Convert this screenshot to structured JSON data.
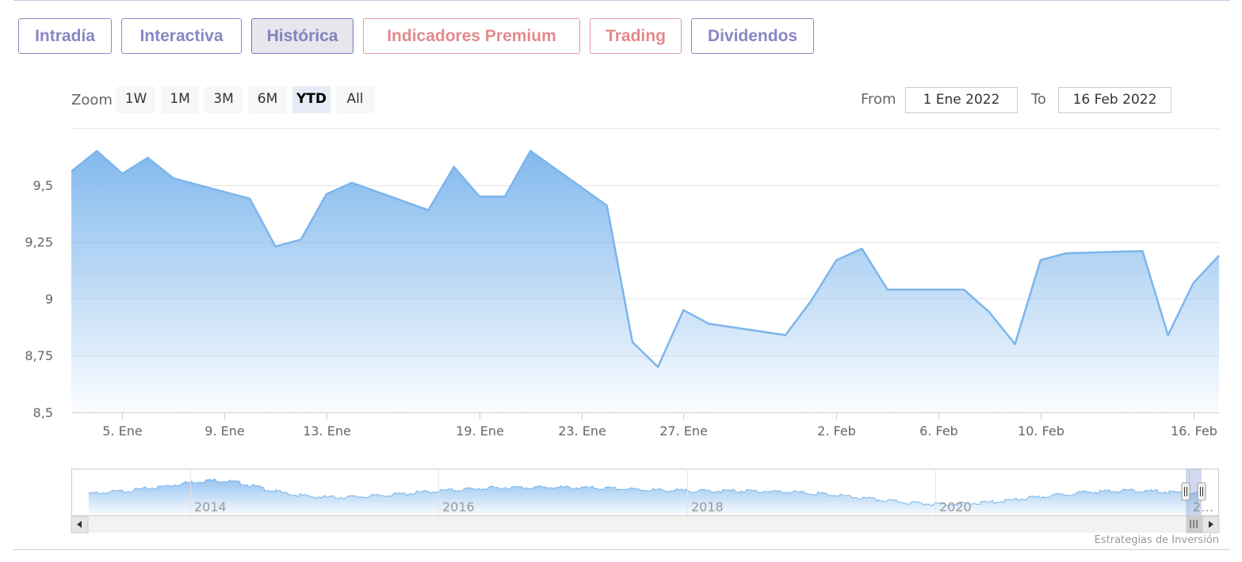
{
  "tabs": [
    {
      "label": "Intradía",
      "name": "tab-intradia",
      "style": "purple",
      "active": false
    },
    {
      "label": "Interactiva",
      "name": "tab-interactiva",
      "style": "purple",
      "active": false
    },
    {
      "label": "Histórica",
      "name": "tab-historica",
      "style": "purple",
      "active": true
    },
    {
      "label": "Indicadores Premium",
      "name": "tab-indicadores-premium",
      "style": "red",
      "active": false
    },
    {
      "label": "Trading",
      "name": "tab-trading",
      "style": "red",
      "active": false
    },
    {
      "label": "Dividendos",
      "name": "tab-dividendos",
      "style": "purple",
      "active": false
    }
  ],
  "zoom": {
    "label": "Zoom",
    "buttons": [
      "1W",
      "1M",
      "3M",
      "6M",
      "YTD",
      "All"
    ],
    "selected": "YTD"
  },
  "range": {
    "from_label": "From",
    "from_value": "1 Ene 2022",
    "to_label": "To",
    "to_value": "16 Feb 2022"
  },
  "credit": "Estrategias de Inversión",
  "colors": {
    "line": "#7cb5ec",
    "tab_purple": "#8a86c2",
    "tab_red": "#e3898c"
  },
  "chart_data": {
    "type": "area",
    "title": "",
    "xlabel": "",
    "ylabel": "",
    "x": [
      "2022-01-03",
      "2022-01-04",
      "2022-01-05",
      "2022-01-06",
      "2022-01-07",
      "2022-01-10",
      "2022-01-11",
      "2022-01-12",
      "2022-01-13",
      "2022-01-14",
      "2022-01-17",
      "2022-01-18",
      "2022-01-19",
      "2022-01-20",
      "2022-01-21",
      "2022-01-24",
      "2022-01-25",
      "2022-01-26",
      "2022-01-27",
      "2022-01-28",
      "2022-01-31",
      "2022-02-01",
      "2022-02-02",
      "2022-02-03",
      "2022-02-04",
      "2022-02-07",
      "2022-02-08",
      "2022-02-09",
      "2022-02-10",
      "2022-02-11",
      "2022-02-14",
      "2022-02-15",
      "2022-02-16",
      "2022-02-17"
    ],
    "series": [
      {
        "values": [
          9.56,
          9.65,
          9.55,
          9.62,
          9.53,
          9.44,
          9.23,
          9.26,
          9.46,
          9.51,
          9.39,
          9.58,
          9.45,
          9.45,
          9.65,
          9.41,
          8.81,
          8.7,
          8.95,
          8.89,
          8.84,
          8.99,
          9.17,
          9.22,
          9.04,
          9.04,
          8.94,
          8.8,
          9.17,
          9.2,
          9.21,
          8.84,
          9.07,
          9.19
        ]
      }
    ],
    "ylim": [
      8.5,
      9.75
    ],
    "y_ticks": [
      "9,5",
      "9,25",
      "9",
      "8,75",
      "8,5"
    ],
    "x_tick_labels": [
      "5. Ene",
      "9. Ene",
      "13. Ene",
      "19. Ene",
      "23. Ene",
      "27. Ene",
      "2. Feb",
      "6. Feb",
      "10. Feb",
      "16. Feb"
    ],
    "grid": true,
    "legend": "none",
    "navigator": {
      "year_labels": [
        "2014",
        "2016",
        "2018",
        "2020",
        "2…"
      ]
    }
  }
}
